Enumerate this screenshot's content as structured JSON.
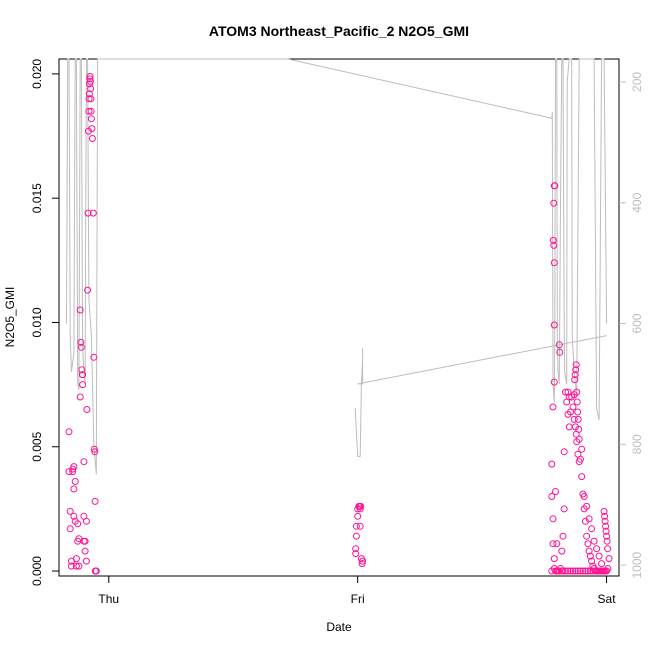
{
  "chart_data": {
    "type": "scatter",
    "title": "ATOM3 Northeast_Pacific_2 N2O5_GMI",
    "xlabel": "Date",
    "ylabel": "N2O5_GMI",
    "x_unit": "days",
    "xlim": [
      -0.2,
      2.05
    ],
    "ylim": [
      -0.0002,
      0.0206
    ],
    "x_ticks": [
      {
        "value": 0,
        "label": "Thu"
      },
      {
        "value": 1,
        "label": "Fri"
      },
      {
        "value": 2,
        "label": "Sat"
      }
    ],
    "y_ticks": [
      {
        "value": 0.0,
        "label": "0.000"
      },
      {
        "value": 0.005,
        "label": "0.005"
      },
      {
        "value": 0.01,
        "label": "0.010"
      },
      {
        "value": 0.015,
        "label": "0.015"
      },
      {
        "value": 0.02,
        "label": "0.020"
      }
    ],
    "y2_ticks": [
      {
        "value": 200,
        "label": "200"
      },
      {
        "value": 400,
        "label": "400"
      },
      {
        "value": 600,
        "label": "600"
      },
      {
        "value": 800,
        "label": "800"
      },
      {
        "value": 1000,
        "label": "1000"
      }
    ],
    "y2lim_top_to_bottom": [
      162,
      1018
    ],
    "colors": {
      "points": "#ff1493",
      "pressure_line": "#bdbdbd",
      "axis": "#000000"
    },
    "series": [
      {
        "values_xy": [
          [
            -0.16,
            0.0056
          ],
          [
            -0.16,
            0.004
          ],
          [
            -0.155,
            0.0024
          ],
          [
            -0.155,
            0.0017
          ],
          [
            -0.15,
            0.0004
          ],
          [
            -0.15,
            0.0002
          ],
          [
            -0.145,
            0.004
          ],
          [
            -0.145,
            0.0041
          ],
          [
            -0.14,
            0.0042
          ],
          [
            -0.14,
            0.0033
          ],
          [
            -0.14,
            0.0022
          ],
          [
            -0.135,
            0.0036
          ],
          [
            -0.135,
            0.002
          ],
          [
            -0.13,
            0.0005
          ],
          [
            -0.13,
            0.0002
          ],
          [
            -0.125,
            0.0019
          ],
          [
            -0.125,
            0.0012
          ],
          [
            -0.12,
            0.0002
          ],
          [
            -0.12,
            0.0013
          ],
          [
            -0.115,
            0.007
          ],
          [
            -0.115,
            0.0105
          ],
          [
            -0.112,
            0.0092
          ],
          [
            -0.11,
            0.009
          ],
          [
            -0.108,
            0.0081
          ],
          [
            -0.106,
            0.0079
          ],
          [
            -0.105,
            0.0079
          ],
          [
            -0.105,
            0.0075
          ],
          [
            -0.1,
            0.0044
          ],
          [
            -0.1,
            0.0022
          ],
          [
            -0.1,
            0.0012
          ],
          [
            -0.095,
            0.0012
          ],
          [
            -0.095,
            0.0008
          ],
          [
            -0.09,
            0.0004
          ],
          [
            -0.09,
            0.002
          ],
          [
            -0.088,
            0.0065
          ],
          [
            -0.085,
            0.0113
          ],
          [
            -0.083,
            0.0144
          ],
          [
            -0.082,
            0.0177
          ],
          [
            -0.08,
            0.0185
          ],
          [
            -0.079,
            0.019
          ],
          [
            -0.078,
            0.0192
          ],
          [
            -0.077,
            0.0196
          ],
          [
            -0.076,
            0.0198
          ],
          [
            -0.075,
            0.0199
          ],
          [
            -0.074,
            0.0197
          ],
          [
            -0.073,
            0.0194
          ],
          [
            -0.072,
            0.019
          ],
          [
            -0.071,
            0.0185
          ],
          [
            -0.07,
            0.0182
          ],
          [
            -0.068,
            0.0178
          ],
          [
            -0.066,
            0.0174
          ],
          [
            -0.062,
            0.0144
          ],
          [
            -0.06,
            0.0086
          ],
          [
            -0.058,
            0.0049
          ],
          [
            -0.056,
            0.0048
          ],
          [
            -0.055,
            0.0028
          ],
          [
            -0.054,
            0.0
          ],
          [
            -0.052,
            0.0
          ],
          [
            -0.05,
            0.0
          ],
          [
            1.005,
            0.0026
          ],
          [
            1.008,
            0.0026
          ],
          [
            1.01,
            0.0025
          ],
          [
            1.01,
            0.0018
          ],
          [
            1.0,
            0.0022
          ],
          [
            0.995,
            0.0018
          ],
          [
            0.995,
            0.0014
          ],
          [
            0.992,
            0.0009
          ],
          [
            0.992,
            0.0007
          ],
          [
            1.015,
            0.0005
          ],
          [
            1.018,
            0.0003
          ],
          [
            1.02,
            0.0004
          ],
          [
            1.0,
            0.0025
          ],
          [
            1.012,
            0.0026
          ],
          [
            1.78,
            0.0
          ],
          [
            1.79,
            0.0001
          ],
          [
            1.79,
            0.0005
          ],
          [
            1.785,
            0.0011
          ],
          [
            1.785,
            0.0021
          ],
          [
            1.78,
            0.003
          ],
          [
            1.78,
            0.0043
          ],
          [
            1.785,
            0.0066
          ],
          [
            1.79,
            0.0076
          ],
          [
            1.795,
            0.0032
          ],
          [
            1.8,
            0.0011
          ],
          [
            1.8,
            0.0
          ],
          [
            1.81,
            0.0
          ],
          [
            1.82,
            0.0
          ],
          [
            1.82,
            0.0008
          ],
          [
            1.825,
            0.0014
          ],
          [
            1.83,
            0.0025
          ],
          [
            1.83,
            0.0048
          ],
          [
            1.835,
            0.0072
          ],
          [
            1.84,
            0.0068
          ],
          [
            1.845,
            0.0063
          ],
          [
            1.85,
            0.0058
          ],
          [
            1.855,
            0.0064
          ],
          [
            1.86,
            0.007
          ],
          [
            1.865,
            0.0066
          ],
          [
            1.87,
            0.0061
          ],
          [
            1.875,
            0.0058
          ],
          [
            1.878,
            0.0055
          ],
          [
            1.88,
            0.0052
          ],
          [
            1.885,
            0.0047
          ],
          [
            1.89,
            0.0044
          ],
          [
            1.895,
            0.0045
          ],
          [
            1.9,
            0.0038
          ],
          [
            1.905,
            0.0031
          ],
          [
            1.91,
            0.0025
          ],
          [
            1.915,
            0.002
          ],
          [
            1.92,
            0.0014
          ],
          [
            1.925,
            0.0011
          ],
          [
            1.93,
            0.0008
          ],
          [
            1.935,
            0.0006
          ],
          [
            1.94,
            0.0004
          ],
          [
            1.945,
            0.0002
          ],
          [
            1.95,
            0.0001
          ],
          [
            1.955,
            0.0
          ],
          [
            1.96,
            0.0
          ],
          [
            1.965,
            0.0
          ],
          [
            1.97,
            0.0
          ],
          [
            1.975,
            0.0
          ],
          [
            1.98,
            0.0
          ],
          [
            1.985,
            0.0
          ],
          [
            1.99,
            0.0
          ],
          [
            1.995,
            0.0
          ],
          [
            2.0,
            0.0
          ],
          [
            2.005,
            0.0001
          ],
          [
            2.01,
            0.0005
          ],
          [
            1.79,
            0.0155
          ],
          [
            1.792,
            0.0155
          ],
          [
            1.788,
            0.0148
          ],
          [
            1.786,
            0.0133
          ],
          [
            1.788,
            0.0131
          ],
          [
            1.79,
            0.0124
          ],
          [
            1.79,
            0.0099
          ],
          [
            1.845,
            0.0072
          ],
          [
            1.85,
            0.007
          ],
          [
            1.87,
            0.0071
          ],
          [
            1.872,
            0.0077
          ],
          [
            1.874,
            0.0079
          ],
          [
            1.876,
            0.0081
          ],
          [
            1.878,
            0.0083
          ],
          [
            1.88,
            0.0072
          ],
          [
            1.882,
            0.0068
          ],
          [
            1.884,
            0.0064
          ],
          [
            1.886,
            0.0061
          ],
          [
            1.888,
            0.0057
          ],
          [
            1.89,
            0.0053
          ],
          [
            1.9,
            0.0049
          ],
          [
            1.91,
            0.003
          ],
          [
            1.92,
            0.0026
          ],
          [
            1.93,
            0.0021
          ],
          [
            1.94,
            0.0017
          ],
          [
            1.95,
            0.0012
          ],
          [
            1.96,
            0.0009
          ],
          [
            1.97,
            0.0006
          ],
          [
            1.98,
            0.0003
          ],
          [
            1.99,
            0.0024
          ],
          [
            1.992,
            0.0022
          ],
          [
            1.994,
            0.002
          ],
          [
            1.996,
            0.0018
          ],
          [
            1.998,
            0.0016
          ],
          [
            2.0,
            0.0014
          ],
          [
            2.002,
            0.0012
          ],
          [
            2.004,
            0.0009
          ],
          [
            1.795,
            0.0
          ],
          [
            1.805,
            0.0
          ],
          [
            1.815,
            0.0001
          ],
          [
            1.825,
            0.0
          ],
          [
            1.835,
            0.0
          ],
          [
            1.845,
            0.0
          ],
          [
            1.855,
            0.0
          ],
          [
            1.865,
            0.0
          ],
          [
            1.875,
            0.0
          ],
          [
            1.885,
            0.0
          ],
          [
            1.895,
            0.0
          ],
          [
            1.905,
            0.0
          ],
          [
            1.915,
            0.0
          ],
          [
            1.925,
            0.0
          ],
          [
            1.935,
            0.0
          ],
          [
            1.945,
            0.0
          ],
          [
            1.81,
            0.0091
          ],
          [
            1.812,
            0.0088
          ]
        ]
      }
    ],
    "pressure_line_xy": [
      [
        -0.17,
        600
      ],
      [
        -0.165,
        150
      ],
      [
        -0.16,
        130
      ],
      [
        -0.155,
        620
      ],
      [
        -0.15,
        680
      ],
      [
        -0.14,
        650
      ],
      [
        -0.135,
        150
      ],
      [
        -0.13,
        150
      ],
      [
        -0.125,
        700
      ],
      [
        -0.12,
        710
      ],
      [
        -0.115,
        130
      ],
      [
        -0.11,
        140
      ],
      [
        -0.105,
        640
      ],
      [
        -0.1,
        680
      ],
      [
        -0.095,
        700
      ],
      [
        -0.09,
        150
      ],
      [
        -0.085,
        140
      ],
      [
        -0.08,
        560
      ],
      [
        -0.07,
        620
      ],
      [
        -0.06,
        800
      ],
      [
        -0.05,
        850
      ],
      [
        -0.045,
        150
      ],
      [
        -0.04,
        140
      ],
      [
        -0.03,
        150
      ],
      [
        -0.02,
        140
      ],
      [
        0.0,
        140
      ],
      [
        0.3,
        140
      ],
      [
        0.7,
        140
      ],
      [
        0.72,
        150
      ],
      [
        1.78,
        260
      ],
      [
        1.782,
        250
      ],
      [
        1.785,
        700
      ],
      [
        1.79,
        730
      ],
      [
        1.792,
        600
      ],
      [
        1.795,
        140
      ],
      [
        1.8,
        150
      ],
      [
        1.802,
        620
      ],
      [
        1.805,
        680
      ],
      [
        1.81,
        700
      ],
      [
        1.815,
        400
      ],
      [
        1.82,
        150
      ],
      [
        1.825,
        140
      ],
      [
        1.83,
        600
      ],
      [
        1.832,
        680
      ],
      [
        1.84,
        700
      ],
      [
        1.842,
        200
      ],
      [
        1.85,
        140
      ],
      [
        1.86,
        130
      ],
      [
        1.862,
        620
      ],
      [
        1.87,
        680
      ],
      [
        1.88,
        720
      ],
      [
        1.89,
        130
      ],
      [
        1.9,
        140
      ],
      [
        1.95,
        140
      ],
      [
        1.96,
        740
      ],
      [
        1.97,
        760
      ],
      [
        1.98,
        140
      ],
      [
        1.99,
        160
      ],
      [
        2.0,
        600
      ]
    ],
    "pressure_line_fri_xy": [
      [
        0.99,
        740
      ],
      [
        1.0,
        820
      ],
      [
        1.01,
        820
      ],
      [
        1.015,
        700
      ],
      [
        1.02,
        660
      ],
      [
        1.02,
        640
      ],
      [
        1.02,
        700
      ],
      [
        1.0,
        700
      ],
      [
        2.0,
        620
      ]
    ]
  }
}
